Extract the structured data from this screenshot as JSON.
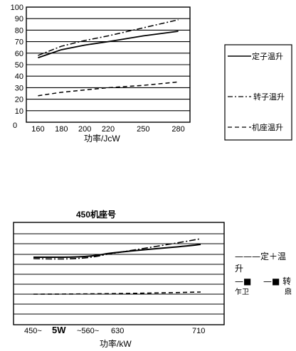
{
  "chart_data": [
    {
      "type": "line",
      "title": "",
      "xlabel": "功率/JcW",
      "ylabel": "",
      "origin_label": "0",
      "x": [
        160,
        180,
        200,
        220,
        250,
        280
      ],
      "x_ticks": [
        "160",
        "180",
        "200",
        "220",
        "250",
        "280"
      ],
      "y_ticks": [
        "10",
        "20",
        "30",
        "40",
        "50",
        "60",
        "70",
        "80",
        "90",
        "100"
      ],
      "ylim": [
        0,
        100
      ],
      "grid": "horizontal",
      "legend_position": "right",
      "series": [
        {
          "name": "定子温升",
          "style": "solid",
          "values": [
            56,
            63,
            67,
            70,
            75,
            79
          ]
        },
        {
          "name": "转子温升",
          "style": "dash-dot",
          "values": [
            58,
            66,
            71,
            75,
            82,
            89
          ]
        },
        {
          "name": "机座温升",
          "style": "dashed",
          "values": [
            23,
            26,
            28,
            30,
            32,
            35
          ]
        }
      ]
    },
    {
      "type": "line",
      "title": "450机座号",
      "xlabel": "功率/kW",
      "ylabel": "",
      "x_tick_labels": [
        "450~",
        "5W",
        "~560~",
        "630",
        "710"
      ],
      "grid": "horizontal",
      "legend_position": "right",
      "legend_text": [
        "———定＋温",
        "升",
        "—■",
        "—■ 转",
        "乍卫",
        "鼎"
      ],
      "series": [
        {
          "name": "定 + 温升",
          "style": "solid",
          "values": []
        },
        {
          "name": "转",
          "style": "dash-dot",
          "values": []
        }
      ]
    }
  ],
  "colors": {
    "ink": "#000000",
    "background": "#ffffff"
  }
}
